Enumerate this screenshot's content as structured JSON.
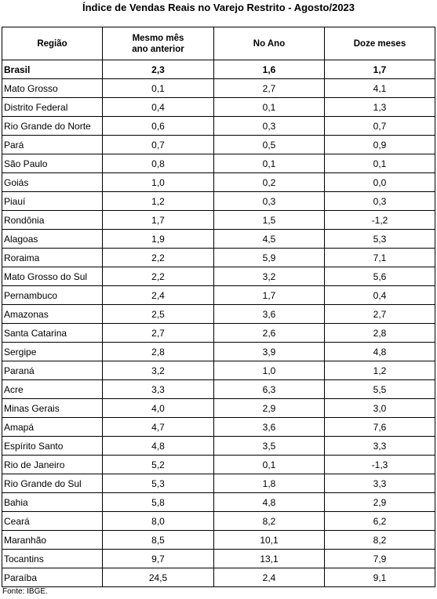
{
  "title": "Índice de Vendas Reais no Varejo Restrito - Agosto/2023",
  "table": {
    "header": [
      "Região",
      "Mesmo mês\nano anterior",
      "No Ano",
      "Doze meses"
    ],
    "rows": [
      [
        "Brasil",
        "2,3",
        "1,6",
        "1,7"
      ],
      [
        "Mato Grosso",
        "0,1",
        "2,7",
        "4,1"
      ],
      [
        "Distrito Federal",
        "0,4",
        "0,1",
        "1,3"
      ],
      [
        "Rio Grande do Norte",
        "0,6",
        "0,3",
        "0,7"
      ],
      [
        "Pará",
        "0,7",
        "0,5",
        "0,9"
      ],
      [
        "São Paulo",
        "0,8",
        "0,1",
        "0,1"
      ],
      [
        "Goiás",
        "1,0",
        "0,2",
        "0,0"
      ],
      [
        "Piauí",
        "1,2",
        "0,3",
        "0,3"
      ],
      [
        "Rondônia",
        "1,7",
        "1,5",
        "-1,2"
      ],
      [
        "Alagoas",
        "1,9",
        "4,5",
        "5,3"
      ],
      [
        "Roraima",
        "2,2",
        "5,9",
        "7,1"
      ],
      [
        "Mato Grosso do Sul",
        "2,2",
        "3,2",
        "5,6"
      ],
      [
        "Pernambuco",
        "2,4",
        "1,7",
        "0,4"
      ],
      [
        "Amazonas",
        "2,5",
        "3,6",
        "2,7"
      ],
      [
        "Santa Catarina",
        "2,7",
        "2,6",
        "2,8"
      ],
      [
        "Sergipe",
        "2,8",
        "3,9",
        "4,8"
      ],
      [
        "Paraná",
        "3,2",
        "1,0",
        "1,2"
      ],
      [
        "Acre",
        "3,3",
        "6,3",
        "5,5"
      ],
      [
        "Minas Gerais",
        "4,0",
        "2,9",
        "3,0"
      ],
      [
        "Amapá",
        "4,7",
        "3,6",
        "7,6"
      ],
      [
        "Espírito Santo",
        "4,8",
        "3,5",
        "3,3"
      ],
      [
        "Rio de Janeiro",
        "5,2",
        "0,1",
        "-1,3"
      ],
      [
        "Rio Grande do Sul",
        "5,3",
        "1,8",
        "3,3"
      ],
      [
        "Bahia",
        "5,8",
        "4,8",
        "2,9"
      ],
      [
        "Ceará",
        "8,0",
        "8,2",
        "6,2"
      ],
      [
        "Maranhão",
        "8,5",
        "10,1",
        "8,2"
      ],
      [
        "Tocantins",
        "9,7",
        "13,1",
        "7,9"
      ],
      [
        "Paraíba",
        "24,5",
        "2,4",
        "9,1"
      ]
    ]
  },
  "source": "Fonte: IBGE."
}
